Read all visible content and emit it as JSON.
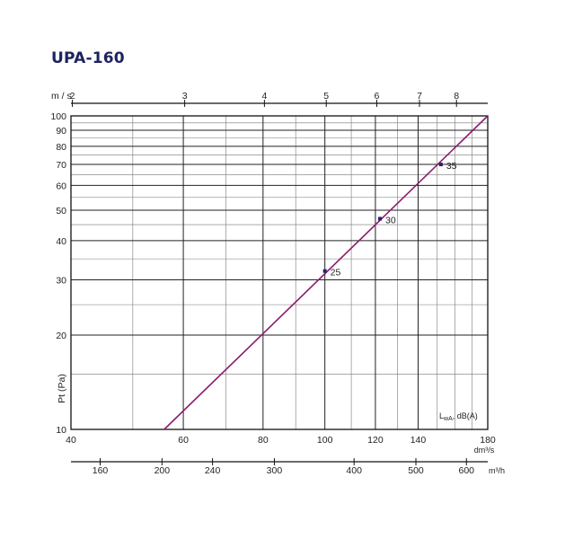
{
  "title": "UPA-160",
  "chart_data": {
    "type": "line",
    "title": "UPA-160",
    "xlabel": "dm³/s",
    "ylabel": "Pt (Pa)",
    "x_scale": "log",
    "y_scale": "log",
    "xlim": [
      40,
      180
    ],
    "ylim": [
      10,
      100
    ],
    "x_ticks": [
      40,
      60,
      80,
      100,
      120,
      140,
      180
    ],
    "y_ticks": [
      10,
      20,
      30,
      40,
      50,
      60,
      70,
      80,
      90,
      100
    ],
    "x_minor_grid": [
      50,
      70,
      90,
      110,
      130,
      150,
      160,
      170
    ],
    "y_minor_grid": [
      15,
      25,
      35,
      45,
      55,
      65,
      75,
      85,
      95
    ],
    "top_axis": {
      "label": "m / s",
      "ticks": [
        2,
        3,
        4,
        5,
        6,
        7,
        8
      ]
    },
    "bottom_axis": {
      "label": "m³/h",
      "ticks": [
        160,
        200,
        240,
        300,
        400,
        500,
        600
      ]
    },
    "series": [
      {
        "x": [
          56,
          180
        ],
        "y": [
          10,
          100
        ],
        "color": "#8b1a6e"
      }
    ],
    "points": [
      {
        "x": 100,
        "y": 32,
        "label": "25"
      },
      {
        "x": 122,
        "y": 47,
        "label": "30"
      },
      {
        "x": 152,
        "y": 70,
        "label": "35"
      }
    ],
    "legend_note": {
      "main": "L",
      "sub": "wA",
      "suffix": ", dB(A)"
    },
    "grid": true
  }
}
